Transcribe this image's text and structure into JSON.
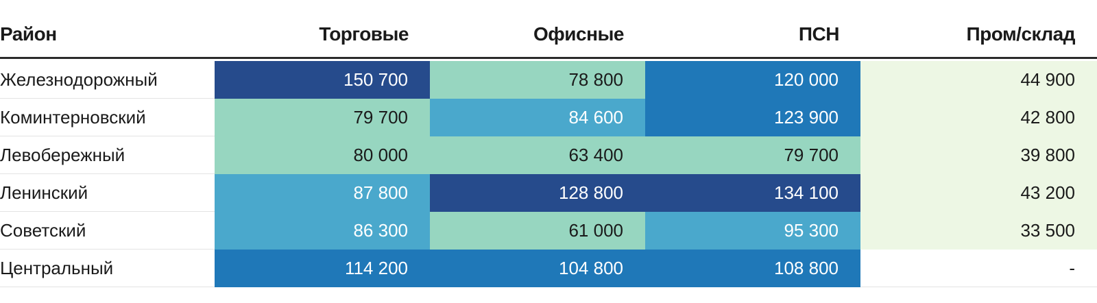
{
  "chart_data": {
    "type": "table",
    "columns": [
      "Район",
      "Торговые",
      "Офисные",
      "ПСН",
      "Пром/склад"
    ],
    "rows": [
      {
        "district": "Железнодорожный",
        "values": [
          "150 700",
          "78 800",
          "120 000",
          "44 900"
        ]
      },
      {
        "district": "Коминтерновский",
        "values": [
          "79 700",
          "84 600",
          "123 900",
          "42 800"
        ]
      },
      {
        "district": "Левобережный",
        "values": [
          "80 000",
          "63 400",
          "79 700",
          "39 800"
        ]
      },
      {
        "district": "Ленинский",
        "values": [
          "87 800",
          "128 800",
          "134 100",
          "43 200"
        ]
      },
      {
        "district": "Советский",
        "values": [
          "86 300",
          "61 000",
          "95 300",
          "33 500"
        ]
      },
      {
        "district": "Центральный",
        "values": [
          "114 200",
          "104 800",
          "108 800",
          "-"
        ]
      }
    ],
    "colors": {
      "very_high": "#264b8c",
      "high": "#1f78b8",
      "mid": "#4aa8cc",
      "low": "#97d6c0",
      "warehouse": "#edf7e4"
    },
    "cell_levels": [
      [
        "very_high",
        "low",
        "high",
        "warehouse"
      ],
      [
        "low",
        "mid",
        "high",
        "warehouse"
      ],
      [
        "low",
        "low",
        "low",
        "warehouse"
      ],
      [
        "mid",
        "very_high",
        "very_high",
        "warehouse"
      ],
      [
        "mid",
        "low",
        "mid",
        "warehouse"
      ],
      [
        "high",
        "high",
        "high",
        "none"
      ]
    ]
  }
}
